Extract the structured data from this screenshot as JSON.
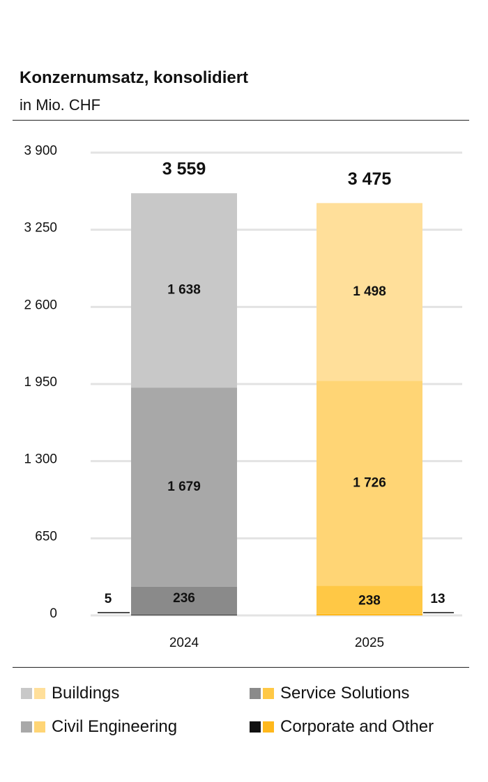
{
  "header": {
    "title": "Konzernumsatz, konsolidiert",
    "subtitle": "in Mio. CHF"
  },
  "colors": {
    "buildings": [
      "#c8c8c8",
      "#ffdf9a"
    ],
    "civil_engineering": [
      "#a8a8a8",
      "#ffd575"
    ],
    "service_solutions": [
      "#8a8a8a",
      "#ffc845"
    ],
    "corporate_other": [
      "#111111",
      "#ffb81c"
    ],
    "grid": "#e3e3e3"
  },
  "legend": [
    {
      "label": "Buildings",
      "key": "buildings"
    },
    {
      "label": "Service Solutions",
      "key": "service_solutions"
    },
    {
      "label": "Civil Engineering",
      "key": "civil_engineering"
    },
    {
      "label": "Corporate and Other",
      "key": "corporate_other"
    }
  ],
  "chart_data": {
    "type": "bar",
    "stacked": true,
    "categories": [
      "2024",
      "2025"
    ],
    "series": [
      {
        "name": "Corporate and Other",
        "key": "corporate_other",
        "values": [
          5,
          13
        ],
        "labels": [
          "5",
          "13"
        ]
      },
      {
        "name": "Service Solutions",
        "key": "service_solutions",
        "values": [
          236,
          238
        ],
        "labels": [
          "236",
          "238"
        ]
      },
      {
        "name": "Civil Engineering",
        "key": "civil_engineering",
        "values": [
          1679,
          1726
        ],
        "labels": [
          "1 679",
          "1 726"
        ]
      },
      {
        "name": "Buildings",
        "key": "buildings",
        "values": [
          1638,
          1498
        ],
        "labels": [
          "1 638",
          "1 498"
        ]
      }
    ],
    "totals": [
      3559,
      3475
    ],
    "total_labels": [
      "3 559",
      "3 475"
    ],
    "ylim": [
      0,
      3900
    ],
    "yticks": [
      0,
      650,
      1300,
      1950,
      2600,
      3250,
      3900
    ],
    "ytick_labels": [
      "0",
      "650",
      "1 300",
      "1 950",
      "2 600",
      "3 250",
      "3 900"
    ],
    "grid": true,
    "legend_position": "bottom"
  }
}
